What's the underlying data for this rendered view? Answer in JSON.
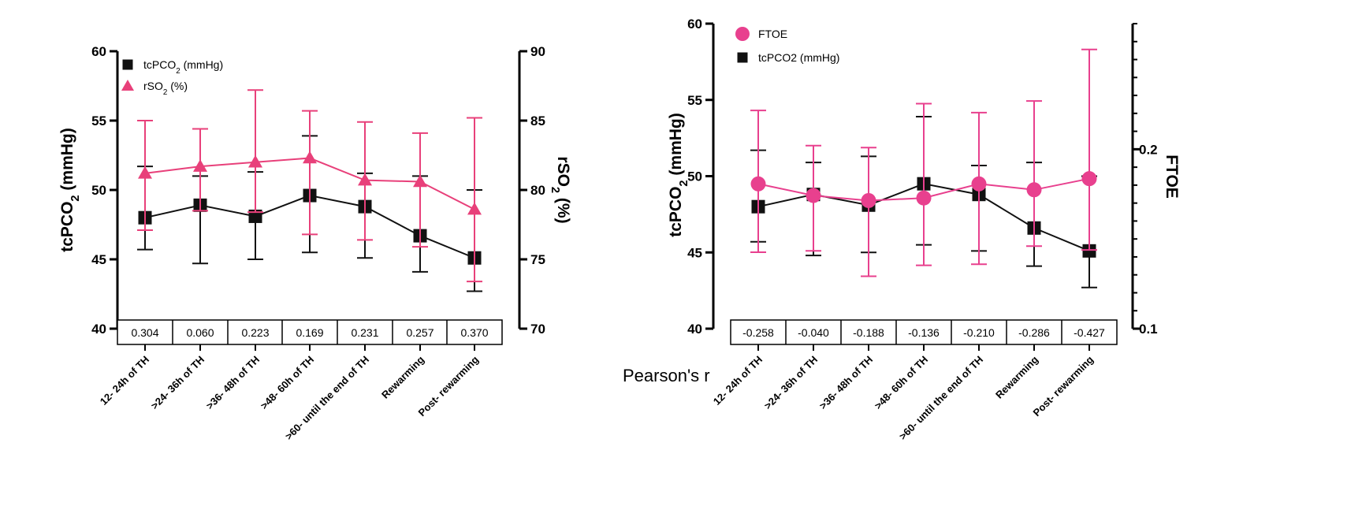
{
  "colors": {
    "tcpco2": "#111111",
    "left_secondary": "#e8407a",
    "right_secondary": "#e8408e",
    "axis": "#000000"
  },
  "pearson_label": "Pearson's r",
  "chart_data": [
    {
      "type": "line",
      "categories": [
        "12- 24h of TH",
        ">24- 36h of TH",
        ">36- 48h of TH",
        ">48- 60h of TH",
        ">60- until the end of TH",
        "Rewarming",
        "Post- rewarming"
      ],
      "ylabel": {
        "main": "tcPCO",
        "sub": "2",
        "unit": " (mmHg)"
      },
      "y2label": {
        "main": "rSO",
        "sub": "2",
        "unit": " (%)"
      },
      "ylim": [
        40,
        60
      ],
      "yticks": [
        "40",
        "45",
        "50",
        "55",
        "60"
      ],
      "y2lim": [
        70,
        90
      ],
      "y2ticks": [
        "70",
        "75",
        "80",
        "85",
        "90"
      ],
      "legend_position": "top-left",
      "legend": [
        {
          "main": "tcPCO",
          "sub": "2",
          "unit": " (mmHg)",
          "marker": "square"
        },
        {
          "main": "rSO",
          "sub": "2",
          "unit": " (%)",
          "marker": "triangle"
        }
      ],
      "series": [
        {
          "axis": "left",
          "marker": "square",
          "values": [
            48.0,
            48.9,
            48.1,
            49.6,
            48.8,
            46.7,
            45.1
          ],
          "err_low": [
            45.7,
            44.7,
            45.0,
            45.5,
            45.1,
            44.1,
            42.7
          ],
          "err_high": [
            51.7,
            51.0,
            51.3,
            53.9,
            51.2,
            51.0,
            50.0
          ]
        },
        {
          "axis": "right",
          "marker": "triangle",
          "values": [
            81.2,
            81.7,
            82.0,
            82.3,
            80.7,
            80.6,
            78.6
          ],
          "err_low": [
            77.1,
            78.5,
            78.4,
            76.8,
            76.4,
            75.9,
            73.4
          ],
          "err_high": [
            85.0,
            84.4,
            87.2,
            85.7,
            84.9,
            84.1,
            85.2
          ]
        }
      ],
      "pearson_r": [
        "0.304",
        "0.060",
        "0.223",
        "0.169",
        "0.231",
        "0.257",
        "0.370"
      ]
    },
    {
      "type": "line",
      "categories": [
        "12- 24h of TH",
        ">24- 36h of TH",
        ">36- 48h of TH",
        ">48- 60h of TH",
        ">60- until the end of TH",
        "Rewarming",
        "Post- rewarming"
      ],
      "ylabel": {
        "main": "tcPCO",
        "sub": "2",
        "unit": " (mmHg)"
      },
      "y2label": {
        "main": "FTOE",
        "sub": "",
        "unit": ""
      },
      "ylim": [
        40,
        60
      ],
      "yticks": [
        "40",
        "45",
        "50",
        "55",
        "60"
      ],
      "y2lim": [
        0.1,
        0.27
      ],
      "y2ticks": [
        "0.1",
        "0.2"
      ],
      "legend_position": "top-left",
      "legend": [
        {
          "main": "FTOE",
          "sub": "",
          "unit": "",
          "marker": "circle"
        },
        {
          "main": "tcPCO2 (mmHg)",
          "sub": "",
          "unit": "",
          "marker": "square"
        }
      ],
      "series": [
        {
          "axis": "left",
          "marker": "square",
          "values": [
            48.0,
            48.8,
            48.1,
            49.5,
            48.8,
            46.6,
            45.1
          ],
          "err_low": [
            45.7,
            44.8,
            45.0,
            45.5,
            45.1,
            44.1,
            42.7
          ],
          "err_high": [
            51.7,
            50.9,
            51.3,
            53.9,
            50.7,
            50.9,
            50.0
          ]
        },
        {
          "axis": "right",
          "marker": "circle",
          "values": [
            0.1807,
            0.1742,
            0.1714,
            0.1728,
            0.1807,
            0.1774,
            0.1836
          ],
          "err_low": [
            0.1426,
            0.1434,
            0.1292,
            0.1353,
            0.1359,
            0.146,
            0.1439
          ],
          "err_high": [
            0.2216,
            0.202,
            0.2009,
            0.2254,
            0.2204,
            0.2269,
            0.2556
          ]
        }
      ],
      "pearson_r": [
        "-0.258",
        "-0.040",
        "-0.188",
        "-0.136",
        "-0.210",
        "-0.286",
        "-0.427"
      ]
    }
  ]
}
